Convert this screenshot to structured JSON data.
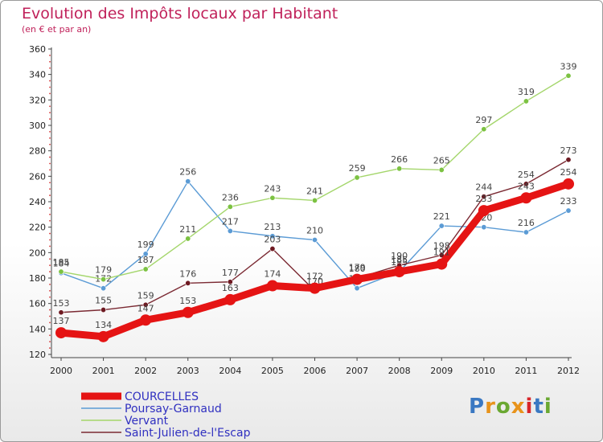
{
  "header": {
    "title": "Evolution des Impôts locaux par Habitant",
    "subtitle": "(en € et par an)"
  },
  "logo": {
    "text": "Proxiti",
    "colors": [
      "#3a78c2",
      "#e8931b",
      "#6aa832",
      "#e8931b",
      "#d8262a",
      "#3a78c2",
      "#6aa832"
    ]
  },
  "chart_data": {
    "type": "line",
    "x": [
      2000,
      2001,
      2002,
      2003,
      2004,
      2005,
      2006,
      2007,
      2008,
      2009,
      2010,
      2011,
      2012
    ],
    "ylim": [
      120,
      360
    ],
    "yticks": [
      120,
      140,
      160,
      180,
      200,
      220,
      240,
      260,
      280,
      300,
      320,
      340,
      360
    ],
    "grid": false,
    "legend_position": "bottom-left",
    "series": [
      {
        "name": "COURCELLES",
        "color": "#e51414",
        "emphasis": true,
        "values": [
          137,
          134,
          147,
          153,
          163,
          174,
          172,
          179,
          185,
          191,
          233,
          243,
          254
        ]
      },
      {
        "name": "Poursay-Garnaud",
        "color": "#5b9bd5",
        "values": [
          184,
          172,
          199,
          256,
          217,
          213,
          210,
          172,
          185,
          221,
          220,
          216,
          233
        ]
      },
      {
        "name": "Vervant",
        "color": "#a4d66b",
        "marker": "#7cc242",
        "values": [
          185,
          179,
          187,
          211,
          236,
          243,
          241,
          259,
          266,
          265,
          297,
          319,
          339
        ]
      },
      {
        "name": "Saint-Julien-de-l'Escap",
        "color": "#7b2a33",
        "marker": "#6e1a22",
        "values": [
          153,
          155,
          159,
          176,
          177,
          203,
          170,
          180,
          190,
          198,
          244,
          254,
          273
        ]
      }
    ]
  }
}
